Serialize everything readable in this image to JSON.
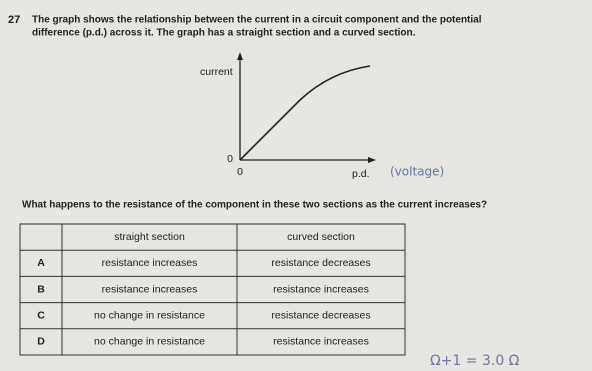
{
  "question": {
    "number": "27",
    "text_lines": [
      "The graph shows the relationship between the current in a circuit component and the potential",
      "difference (p.d.) across it. The graph has a straight section and a curved section."
    ],
    "graph": {
      "y_label": "current",
      "x_label": "p.d.",
      "y_origin": "0",
      "x_origin": "0",
      "annotation": "(voltage)"
    },
    "prompt": "What happens to the resistance of the component in these two sections as the current increases?",
    "table": {
      "header": [
        "straight section",
        "curved section"
      ],
      "rows": [
        [
          "A",
          "resistance increases",
          "resistance decreases"
        ],
        [
          "B",
          "resistance increases",
          "resistance increases"
        ],
        [
          "C",
          "no change in resistance",
          "resistance decreases"
        ],
        [
          "D",
          "no change in resistance",
          "resistance increases"
        ]
      ]
    },
    "handwritten": "Ω+1 = 3.0 Ω"
  }
}
